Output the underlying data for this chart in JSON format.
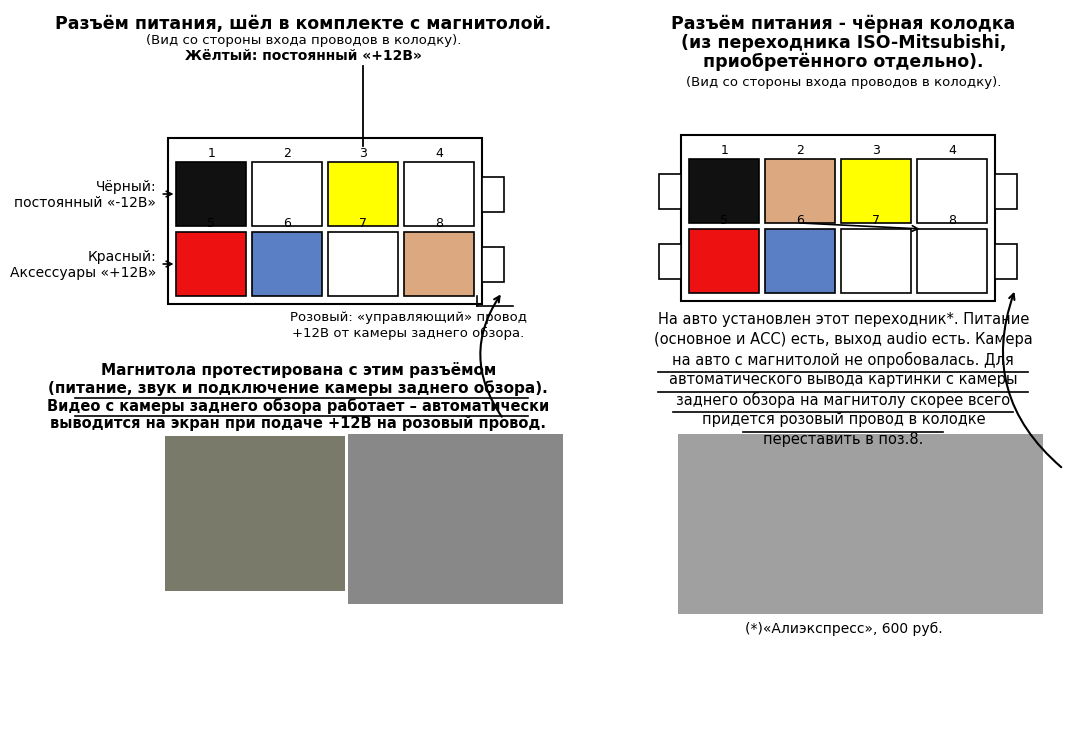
{
  "bg_color": "#ffffff",
  "left_title": "Разъём питания, шёл в комплекте с магнитолой.",
  "left_sub1": "(Вид со стороны входа проводов в колодку).",
  "left_sub2": "Жёлтый: постоянный «+12В»",
  "left_label_black": "Чёрный:\nпостоянный «-12В»",
  "left_label_red": "Красный:\nАксессуары «+12В»",
  "left_pink_label1": "Розовый: «управляющий» провод",
  "left_pink_label2": "+12В от камеры заднего обзора.",
  "left_text1": "Магнитола протестирована с этим разъёмом",
  "left_text2": "(питание, звук и подключение камеры заднего обзора).",
  "left_text3": "Видео с камеры заднего обзора работает – автоматически",
  "left_text4": "выводится на экран при подаче +12В на розовый провод.",
  "lc_row1_colors": [
    "#111111",
    "#ffffff",
    "#ffff00",
    "#ffffff"
  ],
  "lc_row2_colors": [
    "#ee1111",
    "#5b7fc4",
    "#ffffff",
    "#dba880"
  ],
  "right_title1": "Разъём питания - чёрная колодка",
  "right_title2": "(из переходника ISO-Mitsubishi,",
  "right_title3": "приобретённого отдельно).",
  "right_sub": "(Вид со стороны входа проводов в колодку).",
  "rc_row1_colors": [
    "#111111",
    "#dba880",
    "#ffff00",
    "#ffffff"
  ],
  "rc_row2_colors": [
    "#ee1111",
    "#5b7fc4",
    "#ffffff",
    "#ffffff"
  ],
  "right_text1": "На авто установлен этот переходник*. Питание",
  "right_text2": "(основное и АСС) есть, выход audio есть. Камера",
  "right_text3": "на авто с магнитолой не опробовалась. Для",
  "right_text4": "автоматического вывода картинки с камеры",
  "right_text5": "заднего обзора на магнитолу скорее всего",
  "right_text6": "придется розовый провод в колодке",
  "right_text7": "переставить в поз.8.",
  "right_footnote": "(*)«Алиэкспресс», 600 руб.",
  "nums": [
    "1",
    "2",
    "3",
    "4",
    "5",
    "6",
    "7",
    "8"
  ]
}
